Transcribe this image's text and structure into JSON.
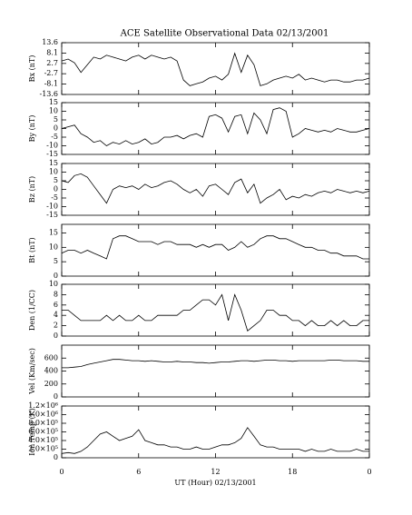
{
  "chart_data": [
    {
      "type": "line",
      "title": "ACE Satellite Observational Data   02/13/2001",
      "ylabel": "Bx (nT)",
      "color": "#000000",
      "x": [
        0,
        0.5,
        1,
        1.5,
        2,
        2.5,
        3,
        3.5,
        4,
        4.5,
        5,
        5.5,
        6,
        6.5,
        7,
        7.5,
        8,
        8.5,
        9,
        9.5,
        10,
        10.5,
        11,
        11.5,
        12,
        12.5,
        13,
        13.5,
        14,
        14.5,
        15,
        15.5,
        16,
        16.5,
        17,
        17.5,
        18,
        18.5,
        19,
        19.5,
        20,
        20.5,
        21,
        21.5,
        22,
        22.5,
        23,
        23.5,
        24
      ],
      "values": [
        4,
        5,
        3,
        -2,
        2,
        6,
        5,
        7,
        6,
        5,
        4,
        6,
        7,
        5,
        7,
        6,
        5,
        6,
        4,
        -6,
        -9,
        -8,
        -7,
        -5,
        -4,
        -6,
        -3,
        8,
        -2,
        7,
        2,
        -9,
        -8,
        -6,
        -5,
        -4,
        -5,
        -3,
        -6,
        -5,
        -6,
        -7,
        -6,
        -6,
        -7,
        -7,
        -6,
        -6,
        -5
      ],
      "xlim": [
        0,
        24
      ],
      "xticks": [
        0,
        6,
        12,
        18,
        {
          "value": 24,
          "label": "0"
        }
      ],
      "ylim": [
        -13.6,
        13.6
      ],
      "yticks": [
        -13.6,
        -8.1,
        -2.7,
        2.7,
        8.1,
        13.6
      ]
    },
    {
      "type": "line",
      "ylabel": "By (nT)",
      "color": "#000000",
      "x": [
        0,
        0.5,
        1,
        1.5,
        2,
        2.5,
        3,
        3.5,
        4,
        4.5,
        5,
        5.5,
        6,
        6.5,
        7,
        7.5,
        8,
        8.5,
        9,
        9.5,
        10,
        10.5,
        11,
        11.5,
        12,
        12.5,
        13,
        13.5,
        14,
        14.5,
        15,
        15.5,
        16,
        16.5,
        17,
        17.5,
        18,
        18.5,
        19,
        19.5,
        20,
        20.5,
        21,
        21.5,
        22,
        22.5,
        23,
        23.5,
        24
      ],
      "values": [
        0,
        1,
        2,
        -3,
        -5,
        -8,
        -7,
        -10,
        -8,
        -9,
        -7,
        -9,
        -8,
        -6,
        -9,
        -8,
        -5,
        -5,
        -4,
        -6,
        -4,
        -3,
        -5,
        7,
        8,
        6,
        -2,
        7,
        8,
        -3,
        9,
        5,
        -3,
        11,
        12,
        10,
        -5,
        -3,
        0,
        -1,
        -2,
        -1,
        -2,
        0,
        -1,
        -2,
        -2,
        -1,
        0
      ],
      "xlim": [
        0,
        24
      ],
      "xticks": [
        0,
        6,
        12,
        18,
        {
          "value": 24,
          "label": "0"
        }
      ],
      "ylim": [
        -15,
        15
      ],
      "yticks": [
        -15,
        -10,
        -5,
        0,
        5,
        10,
        15
      ]
    },
    {
      "type": "line",
      "ylabel": "Bz (nT)",
      "color": "#000000",
      "x": [
        0,
        0.5,
        1,
        1.5,
        2,
        2.5,
        3,
        3.5,
        4,
        4.5,
        5,
        5.5,
        6,
        6.5,
        7,
        7.5,
        8,
        8.5,
        9,
        9.5,
        10,
        10.5,
        11,
        11.5,
        12,
        12.5,
        13,
        13.5,
        14,
        14.5,
        15,
        15.5,
        16,
        16.5,
        17,
        17.5,
        18,
        18.5,
        19,
        19.5,
        20,
        20.5,
        21,
        21.5,
        22,
        22.5,
        23,
        23.5,
        24
      ],
      "values": [
        5,
        4,
        8,
        9,
        7,
        2,
        -3,
        -8,
        0,
        2,
        1,
        2,
        0,
        3,
        1,
        2,
        4,
        5,
        3,
        0,
        -2,
        0,
        -4,
        2,
        3,
        0,
        -3,
        4,
        6,
        -2,
        3,
        -8,
        -5,
        -3,
        0,
        -6,
        -4,
        -5,
        -3,
        -4,
        -2,
        -1,
        -2,
        0,
        -1,
        -2,
        -1,
        -2,
        -1
      ],
      "xlim": [
        0,
        24
      ],
      "xticks": [
        0,
        6,
        12,
        18,
        {
          "value": 24,
          "label": "0"
        }
      ],
      "ylim": [
        -15,
        15
      ],
      "yticks": [
        -15,
        -10,
        -5,
        0,
        5,
        10,
        15
      ]
    },
    {
      "type": "line",
      "ylabel": "Bt (nT)",
      "color": "#000000",
      "x": [
        0,
        0.5,
        1,
        1.5,
        2,
        2.5,
        3,
        3.5,
        4,
        4.5,
        5,
        5.5,
        6,
        6.5,
        7,
        7.5,
        8,
        8.5,
        9,
        9.5,
        10,
        10.5,
        11,
        11.5,
        12,
        12.5,
        13,
        13.5,
        14,
        14.5,
        15,
        15.5,
        16,
        16.5,
        17,
        17.5,
        18,
        18.5,
        19,
        19.5,
        20,
        20.5,
        21,
        21.5,
        22,
        22.5,
        23,
        23.5,
        24
      ],
      "values": [
        8,
        9,
        9,
        8,
        9,
        8,
        7,
        6,
        13,
        14,
        14,
        13,
        12,
        12,
        12,
        11,
        12,
        12,
        11,
        11,
        11,
        10,
        11,
        10,
        11,
        11,
        9,
        10,
        12,
        10,
        11,
        13,
        14,
        14,
        13,
        13,
        12,
        11,
        10,
        10,
        9,
        9,
        8,
        8,
        7,
        7,
        7,
        6,
        6
      ],
      "xlim": [
        0,
        24
      ],
      "xticks": [
        0,
        6,
        12,
        18,
        {
          "value": 24,
          "label": "0"
        }
      ],
      "ylim": [
        0,
        18
      ],
      "yticks": [
        0,
        5,
        10,
        15
      ]
    },
    {
      "type": "line",
      "ylabel": "Den (1/CC)",
      "color": "#000000",
      "x": [
        0,
        0.5,
        1,
        1.5,
        2,
        2.5,
        3,
        3.5,
        4,
        4.5,
        5,
        5.5,
        6,
        6.5,
        7,
        7.5,
        8,
        8.5,
        9,
        9.5,
        10,
        10.5,
        11,
        11.5,
        12,
        12.5,
        13,
        13.5,
        14,
        14.5,
        15,
        15.5,
        16,
        16.5,
        17,
        17.5,
        18,
        18.5,
        19,
        19.5,
        20,
        20.5,
        21,
        21.5,
        22,
        22.5,
        23,
        23.5,
        24
      ],
      "values": [
        5,
        5,
        4,
        3,
        3,
        3,
        3,
        4,
        3,
        4,
        3,
        3,
        4,
        3,
        3,
        4,
        4,
        4,
        4,
        5,
        5,
        6,
        7,
        7,
        6,
        8,
        3,
        8,
        5,
        1,
        2,
        3,
        5,
        5,
        4,
        4,
        3,
        3,
        2,
        3,
        2,
        2,
        3,
        2,
        3,
        2,
        2,
        3,
        3
      ],
      "xlim": [
        0,
        24
      ],
      "xticks": [
        0,
        6,
        12,
        18,
        {
          "value": 24,
          "label": "0"
        }
      ],
      "ylim": [
        0,
        10
      ],
      "yticks": [
        0,
        2,
        4,
        6,
        8,
        10
      ]
    },
    {
      "type": "line",
      "ylabel": "Vel (Km/sec)",
      "color": "#000000",
      "x": [
        0,
        0.5,
        1,
        1.5,
        2,
        2.5,
        3,
        3.5,
        4,
        4.5,
        5,
        5.5,
        6,
        6.5,
        7,
        7.5,
        8,
        8.5,
        9,
        9.5,
        10,
        10.5,
        11,
        11.5,
        12,
        12.5,
        13,
        13.5,
        14,
        14.5,
        15,
        15.5,
        16,
        16.5,
        17,
        17.5,
        18,
        18.5,
        19,
        19.5,
        20,
        20.5,
        21,
        21.5,
        22,
        22.5,
        23,
        23.5,
        24
      ],
      "values": [
        450,
        450,
        460,
        470,
        500,
        520,
        540,
        560,
        580,
        580,
        570,
        560,
        560,
        550,
        560,
        550,
        540,
        540,
        550,
        540,
        540,
        530,
        530,
        520,
        530,
        540,
        540,
        550,
        560,
        560,
        550,
        560,
        570,
        570,
        560,
        560,
        550,
        560,
        560,
        560,
        560,
        560,
        570,
        570,
        560,
        560,
        560,
        550,
        550
      ],
      "xlim": [
        0,
        24
      ],
      "xticks": [
        0,
        6,
        12,
        18,
        {
          "value": 24,
          "label": "0"
        }
      ],
      "ylim": [
        0,
        800
      ],
      "yticks": [
        0,
        200,
        400,
        600
      ]
    },
    {
      "type": "line",
      "ylabel": "Ion Temp (K)",
      "xlabel": "UT (Hour)   02/13/2001",
      "color": "#000000",
      "x": [
        0,
        0.5,
        1,
        1.5,
        2,
        2.5,
        3,
        3.5,
        4,
        4.5,
        5,
        5.5,
        6,
        6.5,
        7,
        7.5,
        8,
        8.5,
        9,
        9.5,
        10,
        10.5,
        11,
        11.5,
        12,
        12.5,
        13,
        13.5,
        14,
        14.5,
        15,
        15.5,
        16,
        16.5,
        17,
        17.5,
        18,
        18.5,
        19,
        19.5,
        20,
        20.5,
        21,
        21.5,
        22,
        22.5,
        23,
        23.5,
        24
      ],
      "values": [
        100000,
        120000,
        100000,
        150000,
        250000,
        400000,
        550000,
        600000,
        500000,
        400000,
        450000,
        500000,
        650000,
        400000,
        350000,
        300000,
        300000,
        250000,
        250000,
        200000,
        200000,
        250000,
        200000,
        200000,
        250000,
        300000,
        300000,
        350000,
        450000,
        700000,
        500000,
        300000,
        250000,
        250000,
        200000,
        200000,
        200000,
        200000,
        150000,
        200000,
        150000,
        150000,
        200000,
        150000,
        150000,
        150000,
        200000,
        150000,
        150000
      ],
      "xlim": [
        0,
        24
      ],
      "xticks": [
        0,
        6,
        12,
        18,
        {
          "value": 24,
          "label": "0"
        }
      ],
      "ylim": [
        0,
        1200000
      ],
      "yticks": [
        0,
        {
          "value": 200000,
          "label": "2.0×10⁵"
        },
        {
          "value": 400000,
          "label": "4.0×10⁵"
        },
        {
          "value": 600000,
          "label": "6.0×10⁵"
        },
        {
          "value": 800000,
          "label": "8.0×10⁵"
        },
        {
          "value": 1000000,
          "label": "1.0×10⁶"
        },
        {
          "value": 1200000,
          "label": "1.2×10⁶"
        }
      ]
    }
  ]
}
